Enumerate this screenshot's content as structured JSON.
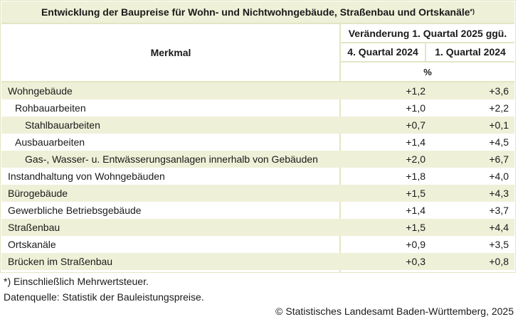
{
  "table": {
    "title": "Entwicklung der Baupreise für Wohn- und Nichtwohngebäude, Straßenbau und Ortskanäle",
    "title_mark": "*)",
    "header_merkmal": "Merkmal",
    "header_span": "Veränderung 1. Quartal 2025 ggü.",
    "columns": [
      "4. Quartal 2024",
      "1. Quartal 2024"
    ],
    "unit": "%",
    "rows": [
      {
        "label": "Wohngebäude",
        "indent": 0,
        "q4_2024": "+1,2",
        "q1_2024": "+3,6"
      },
      {
        "label": "Rohbauarbeiten",
        "indent": 1,
        "q4_2024": "+1,0",
        "q1_2024": "+2,2"
      },
      {
        "label": "Stahlbauarbeiten",
        "indent": 2,
        "q4_2024": "+0,7",
        "q1_2024": "+0,1"
      },
      {
        "label": "Ausbauarbeiten",
        "indent": 1,
        "q4_2024": "+1,4",
        "q1_2024": "+4,5"
      },
      {
        "label": "Gas-, Wasser- u. Entwässerungsanlagen innerhalb von Gebäuden",
        "indent": 2,
        "q4_2024": "+2,0",
        "q1_2024": "+6,7"
      },
      {
        "label": "Instandhaltung von Wohngebäuden",
        "indent": 0,
        "q4_2024": "+1,8",
        "q1_2024": "+4,0"
      },
      {
        "label": "Bürogebäude",
        "indent": 0,
        "q4_2024": "+1,5",
        "q1_2024": "+4,3"
      },
      {
        "label": "Gewerbliche Betriebsgebäude",
        "indent": 0,
        "q4_2024": "+1,4",
        "q1_2024": "+3,7"
      },
      {
        "label": "Straßenbau",
        "indent": 0,
        "q4_2024": "+1,5",
        "q1_2024": "+4,4"
      },
      {
        "label": "Ortskanäle",
        "indent": 0,
        "q4_2024": "+0,9",
        "q1_2024": "+3,5"
      },
      {
        "label": "Brücken im Straßenbau",
        "indent": 0,
        "q4_2024": "+0,3",
        "q1_2024": "+0,8"
      }
    ]
  },
  "footnotes": {
    "note": "*) Einschließlich Mehrwertsteuer.",
    "source": "Datenquelle: Statistik der Bauleistungspreise.",
    "copyright": "© Statistisches Landesamt Baden-Württemberg, 2025"
  }
}
